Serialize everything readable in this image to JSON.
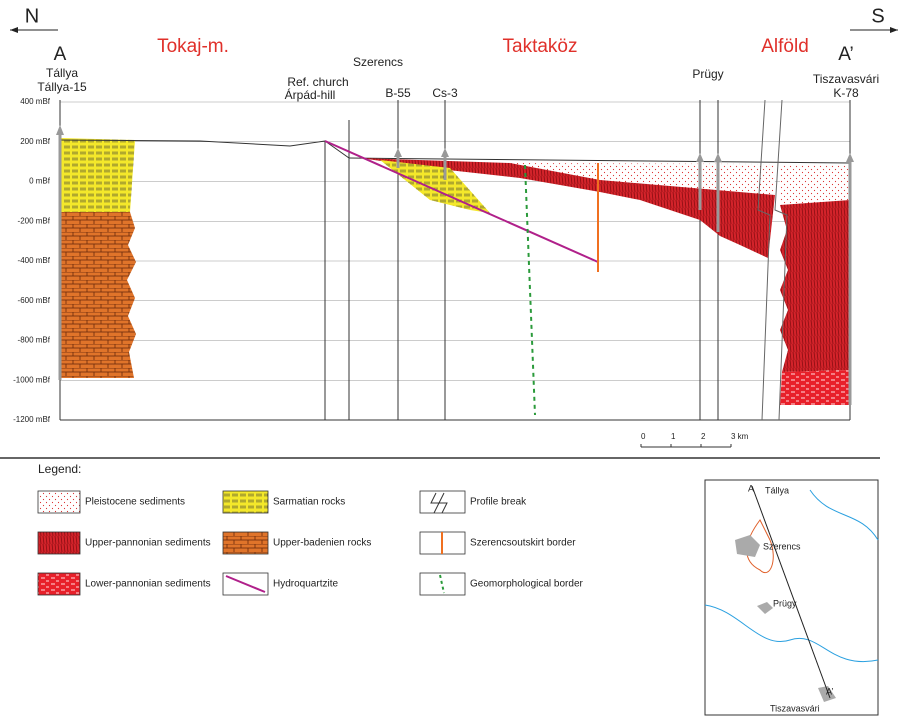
{
  "header": {
    "north": "N",
    "south": "S"
  },
  "regions": {
    "tokaj": "Tokaj-m.",
    "taktakoz": "Taktaköz",
    "alfold": "Alföld"
  },
  "profile": {
    "start": "A",
    "start_place": "Tállya",
    "start_well": "Tállya-15",
    "end": "A’",
    "end_place": "Tiszavasvári",
    "end_well": "K-78"
  },
  "sites": {
    "szerencs": "Szerencs",
    "ref_church": "Ref. church",
    "arpad": "Árpád-hill",
    "b55": "B-55",
    "cs3": "Cs-3",
    "prugy": "Prügy"
  },
  "axis": {
    "ticks": [
      "400 mBf",
      "200 mBf",
      "0 mBf",
      "-200 mBf",
      "-400 mBf",
      "-600 mBf",
      "-800 mBf",
      "-1000 mBf",
      "-1200 mBf"
    ]
  },
  "scale": [
    "0",
    "1",
    "2",
    "3 km"
  ],
  "legend": {
    "title": "Legend:",
    "items": [
      "Pleistocene sediments",
      "Upper-pannonian sediments",
      "Lower-pannonian sediments",
      "Sarmatian rocks",
      "Upper-badenien rocks",
      "Hydroquartzite",
      "Profile break",
      "Szerencsoutskirt border",
      "Geomorphological border"
    ]
  },
  "map": {
    "a": "A",
    "tallya": "Tállya",
    "szerencs": "Szerencs",
    "prugy": "Prügy",
    "a_end": "A’",
    "tiszavasvari": "Tiszavasvári"
  }
}
